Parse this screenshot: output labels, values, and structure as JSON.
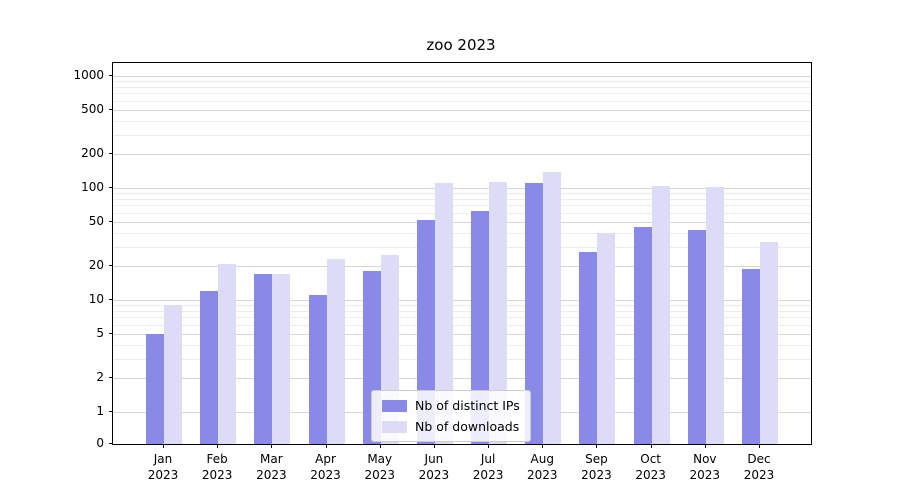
{
  "chart_data": {
    "type": "bar",
    "title": "zoo 2023",
    "categories": [
      "Jan",
      "Feb",
      "Mar",
      "Apr",
      "May",
      "Jun",
      "Jul",
      "Aug",
      "Sep",
      "Oct",
      "Nov",
      "Dec"
    ],
    "year": "2023",
    "series": [
      {
        "name": "Nb of distinct IPs",
        "color": "#8989e8",
        "values": [
          5,
          12,
          17,
          11,
          18,
          52,
          62,
          110,
          27,
          45,
          42,
          19
        ]
      },
      {
        "name": "Nb of downloads",
        "color": "#dcdcf7",
        "values": [
          9,
          21,
          17,
          23,
          25,
          110,
          112,
          140,
          40,
          105,
          102,
          33
        ]
      }
    ],
    "y_ticks": [
      0,
      1,
      2,
      5,
      10,
      20,
      50,
      100,
      200,
      500,
      1000
    ],
    "y_minor_ticks": [
      3,
      4,
      6,
      7,
      8,
      9,
      30,
      40,
      60,
      70,
      80,
      90,
      300,
      400,
      600,
      700,
      800,
      900
    ],
    "y_scale": "symlog",
    "ylim": [
      0,
      1400
    ],
    "xlabel": "",
    "ylabel": "",
    "grid": "horizontal",
    "legend_position": "lower center"
  }
}
